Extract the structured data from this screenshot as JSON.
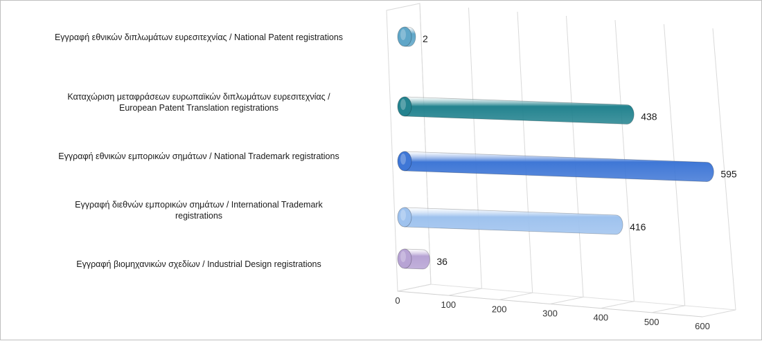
{
  "chart_data": {
    "type": "bar",
    "orientation": "horizontal",
    "style": "3d-cylinder",
    "title": "",
    "xlabel": "",
    "ylabel": "",
    "xlim": [
      0,
      600
    ],
    "x_ticks": [
      "0",
      "100",
      "200",
      "300",
      "400",
      "500",
      "600"
    ],
    "grid": true,
    "legend": "none",
    "categories": [
      [
        "Εγγραφή  εθνικών διπλωμάτων ευρεσιτεχνίας / National Patent registrations"
      ],
      [
        "Καταχώριση μεταφράσεων ευρωπαϊκών διπλωμάτων ευρεσιτεχνίας /",
        "European Patent Translation registrations"
      ],
      [
        "Εγγραφή  εθνικών εμπορικών σημάτων / National Trademark registrations"
      ],
      [
        "Εγγραφή  διεθνών εμπορικών σημάτων / International Trademark",
        "registrations"
      ],
      [
        "Εγγραφή  βιομηχανικών σχεδίων / Industrial Design registrations"
      ]
    ],
    "values": [
      2,
      438,
      595,
      416,
      36
    ],
    "value_labels": [
      "2",
      "438",
      "595",
      "416",
      "36"
    ],
    "colors": [
      "#5fa6c8",
      "#23838f",
      "#3f77d6",
      "#9ec2ee",
      "#b7a3d4"
    ]
  }
}
